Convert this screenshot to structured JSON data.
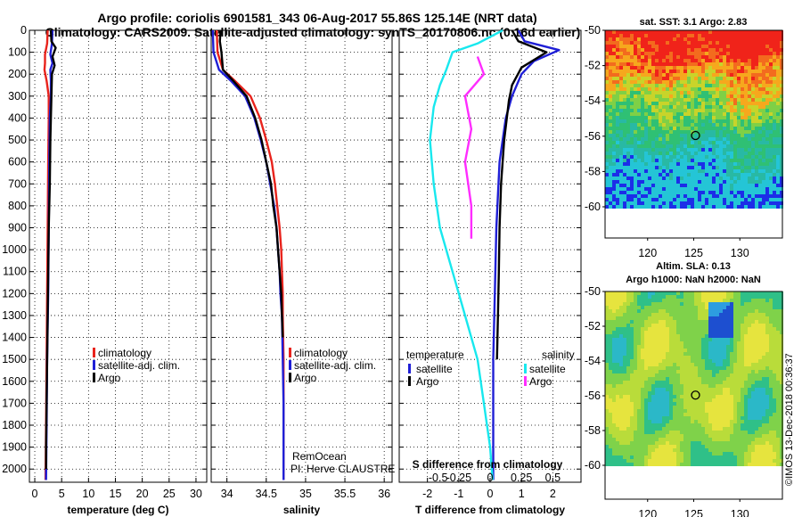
{
  "title_line1": "Argo profile: coriolis 6901581_343 06-Aug-2017 55.86S 125.14E (NRT data)",
  "title_line2": "Climatology: CARS2009. Satellite-adjusted climatology: synTS_20170806.nc (0.16d earlier)",
  "colors": {
    "climatology": "#e8231c",
    "satellite": "#1f1fd6",
    "argo": "#000000",
    "satellite_s": "#18e8ee",
    "argo_s": "#ff2cff"
  },
  "chart_data": [
    {
      "type": "line",
      "id": "temperature",
      "xlabel": "temperature (deg C)",
      "ylabel": "",
      "xlim": [
        -1,
        32
      ],
      "ylim": [
        2060,
        0
      ],
      "xticks": [
        0,
        5,
        10,
        15,
        20,
        25,
        30
      ],
      "yticks": [
        0,
        100,
        200,
        300,
        400,
        500,
        600,
        700,
        800,
        900,
        1000,
        1100,
        1200,
        1300,
        1400,
        1500,
        1600,
        1700,
        1800,
        1900,
        2000
      ],
      "legend": [
        "climatology",
        "satellite-adj. clim.",
        "Argo"
      ],
      "series": [
        {
          "name": "climatology",
          "color": "climatology",
          "points": [
            [
              2.4,
              0
            ],
            [
              2.3,
              60
            ],
            [
              1.9,
              110
            ],
            [
              1.9,
              150
            ],
            [
              1.8,
              180
            ],
            [
              2.2,
              230
            ],
            [
              2.6,
              300
            ],
            [
              2.6,
              400
            ],
            [
              2.5,
              600
            ],
            [
              2.4,
              900
            ],
            [
              2.3,
              1200
            ],
            [
              2.2,
              1500
            ],
            [
              2.1,
              1800
            ],
            [
              2.0,
              2050
            ]
          ]
        },
        {
          "name": "satellite-adj. clim.",
          "color": "satellite",
          "points": [
            [
              3.3,
              0
            ],
            [
              3.2,
              60
            ],
            [
              2.9,
              110
            ],
            [
              3.3,
              150
            ],
            [
              2.9,
              180
            ],
            [
              3.0,
              230
            ],
            [
              3.0,
              300
            ],
            [
              2.8,
              400
            ],
            [
              2.7,
              600
            ],
            [
              2.6,
              900
            ],
            [
              2.5,
              1200
            ],
            [
              2.3,
              1500
            ],
            [
              2.2,
              1800
            ],
            [
              2.1,
              2050
            ]
          ]
        },
        {
          "name": "Argo",
          "color": "argo",
          "points": [
            [
              3.0,
              0
            ],
            [
              3.1,
              50
            ],
            [
              3.9,
              80
            ],
            [
              3.3,
              120
            ],
            [
              3.7,
              160
            ],
            [
              3.2,
              200
            ],
            [
              3.1,
              300
            ],
            [
              2.9,
              500
            ],
            [
              2.8,
              700
            ],
            [
              2.6,
              900
            ],
            [
              2.5,
              1100
            ],
            [
              2.4,
              1300
            ],
            [
              2.3,
              1500
            ],
            [
              2.2,
              1700
            ],
            [
              2.1,
              1900
            ],
            [
              2.1,
              2000
            ]
          ]
        }
      ]
    },
    {
      "type": "line",
      "id": "salinity",
      "xlabel": "salinity",
      "ylabel": "",
      "xlim": [
        33.8,
        36.1
      ],
      "ylim": [
        2060,
        0
      ],
      "xticks": [
        34,
        34.5,
        35,
        35.5,
        36
      ],
      "legend": [
        "climatology",
        "satellite-adj. clim.",
        "Argo"
      ],
      "annotations": [
        "RemOcean",
        "PI: Herve CLAUSTRE"
      ],
      "series": [
        {
          "name": "climatology",
          "color": "climatology",
          "points": [
            [
              33.87,
              0
            ],
            [
              33.88,
              100
            ],
            [
              33.95,
              180
            ],
            [
              34.1,
              230
            ],
            [
              34.3,
              300
            ],
            [
              34.42,
              400
            ],
            [
              34.5,
              500
            ],
            [
              34.57,
              600
            ],
            [
              34.61,
              700
            ],
            [
              34.64,
              800
            ],
            [
              34.67,
              900
            ],
            [
              34.69,
              1000
            ],
            [
              34.7,
              1100
            ],
            [
              34.71,
              1200
            ],
            [
              34.71,
              1300
            ],
            [
              34.72,
              1500
            ],
            [
              34.72,
              1700
            ],
            [
              34.72,
              2050
            ]
          ]
        },
        {
          "name": "satellite-adj. clim.",
          "color": "satellite",
          "points": [
            [
              33.82,
              0
            ],
            [
              33.83,
              100
            ],
            [
              33.9,
              180
            ],
            [
              34.05,
              230
            ],
            [
              34.23,
              300
            ],
            [
              34.35,
              400
            ],
            [
              34.43,
              500
            ],
            [
              34.5,
              600
            ],
            [
              34.55,
              700
            ],
            [
              34.6,
              800
            ],
            [
              34.63,
              900
            ],
            [
              34.65,
              1000
            ],
            [
              34.67,
              1100
            ],
            [
              34.68,
              1200
            ],
            [
              34.7,
              1300
            ],
            [
              34.71,
              1500
            ],
            [
              34.72,
              1700
            ],
            [
              34.72,
              2050
            ]
          ]
        },
        {
          "name": "Argo",
          "color": "argo",
          "points": [
            [
              33.92,
              0
            ],
            [
              33.91,
              50
            ],
            [
              33.93,
              100
            ],
            [
              33.95,
              180
            ],
            [
              34.08,
              230
            ],
            [
              34.25,
              300
            ],
            [
              34.36,
              400
            ],
            [
              34.44,
              500
            ],
            [
              34.5,
              600
            ],
            [
              34.56,
              700
            ],
            [
              34.59,
              800
            ],
            [
              34.63,
              900
            ],
            [
              34.65,
              1000
            ],
            [
              34.67,
              1100
            ],
            [
              34.69,
              1200
            ],
            [
              34.7,
              1300
            ],
            [
              34.71,
              1400
            ]
          ]
        }
      ]
    },
    {
      "type": "line",
      "id": "difference",
      "xlabel": "T difference from climatology",
      "xlabel_top": "S difference from climatology",
      "xlim": [
        -2.9,
        2.9
      ],
      "ylim": [
        2060,
        0
      ],
      "xticks": [
        -2,
        -1,
        0,
        1,
        2
      ],
      "xticks_s": [
        -0.5,
        -0.25,
        0,
        0.25,
        0.5
      ],
      "legend_titles": [
        "temperature",
        "salinity"
      ],
      "legend_left": [
        "satellite",
        "Argo"
      ],
      "legend_right": [
        "satellite",
        "Argo"
      ],
      "series": [
        {
          "name": "satellite",
          "color": "satellite",
          "points": [
            [
              0.9,
              0
            ],
            [
              1.1,
              50
            ],
            [
              2.2,
              90
            ],
            [
              1.4,
              140
            ],
            [
              1.0,
              200
            ],
            [
              0.7,
              300
            ],
            [
              0.5,
              400
            ],
            [
              0.3,
              600
            ],
            [
              0.2,
              900
            ],
            [
              0.15,
              1200
            ],
            [
              0.1,
              1500
            ],
            [
              0.1,
              1800
            ],
            [
              0.1,
              2050
            ]
          ]
        },
        {
          "name": "Argo",
          "color": "argo",
          "points": [
            [
              0.7,
              0
            ],
            [
              0.9,
              50
            ],
            [
              1.8,
              100
            ],
            [
              1.0,
              170
            ],
            [
              0.7,
              250
            ],
            [
              0.6,
              320
            ],
            [
              0.45,
              500
            ],
            [
              0.35,
              700
            ],
            [
              0.3,
              900
            ],
            [
              0.28,
              1100
            ],
            [
              0.25,
              1300
            ],
            [
              0.22,
              1500
            ]
          ]
        },
        {
          "name": "satellite S",
          "color": "satellite_s",
          "points": [
            [
              0.1,
              0
            ],
            [
              -0.1,
              60
            ],
            [
              -0.3,
              100
            ],
            [
              -0.35,
              180
            ],
            [
              -0.4,
              250
            ],
            [
              -0.45,
              350
            ],
            [
              -0.48,
              500
            ],
            [
              -0.45,
              700
            ],
            [
              -0.4,
              900
            ],
            [
              -0.3,
              1100
            ],
            [
              -0.2,
              1300
            ],
            [
              -0.1,
              1500
            ],
            [
              -0.05,
              1700
            ],
            [
              0.0,
              1900
            ],
            [
              0.02,
              2050
            ]
          ]
        },
        {
          "name": "Argo S",
          "color": "argo_s",
          "points": [
            [
              -0.1,
              120
            ],
            [
              -0.05,
              200
            ],
            [
              -0.2,
              300
            ],
            [
              -0.15,
              450
            ],
            [
              -0.2,
              600
            ],
            [
              -0.15,
              800
            ],
            [
              -0.15,
              950
            ]
          ]
        }
      ]
    }
  ],
  "map_sst": {
    "title": "sat. SST: 3.1 Argo: 2.83",
    "yticks": [
      -50,
      -52,
      -54,
      -56,
      -58,
      -60
    ],
    "xticks": [
      120,
      125,
      130
    ]
  },
  "map_sla": {
    "title_line1": "Altim. SLA: 0.13",
    "title_line2": "Argo h1000: NaN h2000: NaN",
    "yticks": [
      -50,
      -52,
      -54,
      -56,
      -58,
      -60
    ],
    "xticks": [
      120,
      125,
      130
    ]
  },
  "credit": "©IMOS 13-Dec-2018 00:36:37"
}
